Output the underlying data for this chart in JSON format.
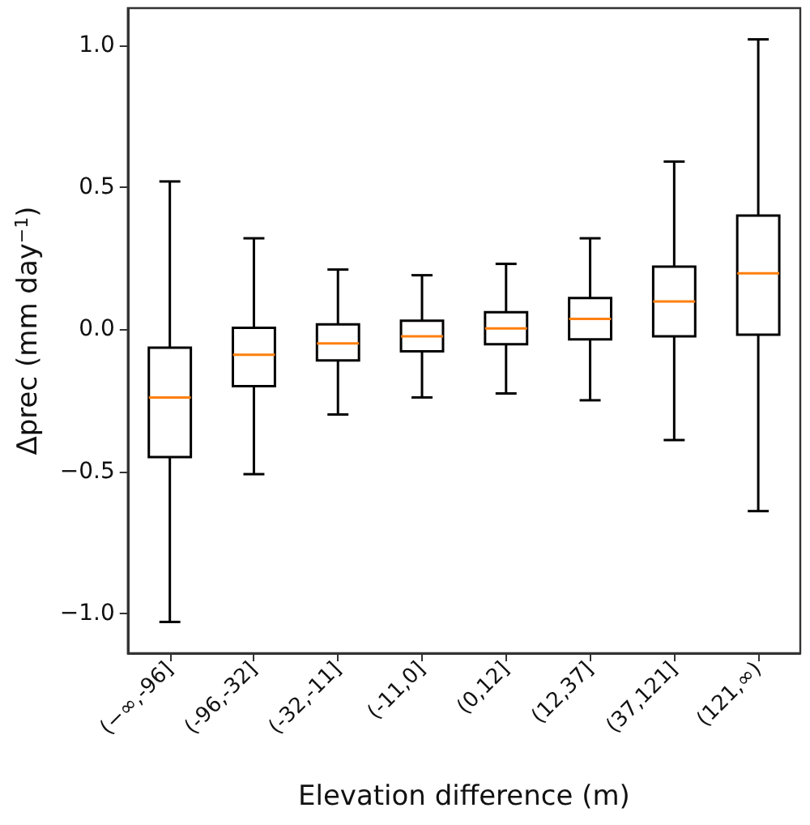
{
  "chart_data": {
    "type": "box",
    "xlabel": "Elevation difference (m)",
    "ylabel": "Δprec (mm day$^{−1}$)",
    "categories": [
      "(−∞,-96]",
      "(-96,-32]",
      "(-32,-11]",
      "(-11,0]",
      "(0,12]",
      "(12,37]",
      "(37,121]",
      "(121,∞)"
    ],
    "series": [
      {
        "color": "#000000",
        "boxes": [
          {
            "low": -1.03,
            "q1": -0.45,
            "median": -0.24,
            "q3": -0.065,
            "high": 0.52
          },
          {
            "low": -0.51,
            "q1": -0.2,
            "median": -0.09,
            "q3": 0.005,
            "high": 0.32
          },
          {
            "low": -0.3,
            "q1": -0.11,
            "median": -0.05,
            "q3": 0.017,
            "high": 0.21
          },
          {
            "low": -0.24,
            "q1": -0.078,
            "median": -0.025,
            "q3": 0.03,
            "high": 0.19
          },
          {
            "low": -0.226,
            "q1": -0.053,
            "median": 0.003,
            "q3": 0.06,
            "high": 0.23
          },
          {
            "low": -0.25,
            "q1": -0.036,
            "median": 0.036,
            "q3": 0.11,
            "high": 0.32
          },
          {
            "low": -0.39,
            "q1": -0.025,
            "median": 0.098,
            "q3": 0.22,
            "high": 0.59
          },
          {
            "low": -0.64,
            "q1": -0.019,
            "median": 0.197,
            "q3": 0.4,
            "high": 1.02
          }
        ]
      }
    ],
    "ylim": [
      -1.14,
      1.13
    ],
    "yticks": [
      {
        "value": -1,
        "label": "−1.0"
      },
      {
        "value": -0.5,
        "label": "−0.5"
      },
      {
        "value": 0,
        "label": "0.0"
      },
      {
        "value": 0.5,
        "label": "0.5"
      },
      {
        "value": 1,
        "label": "1.0"
      }
    ],
    "grid": false
  }
}
